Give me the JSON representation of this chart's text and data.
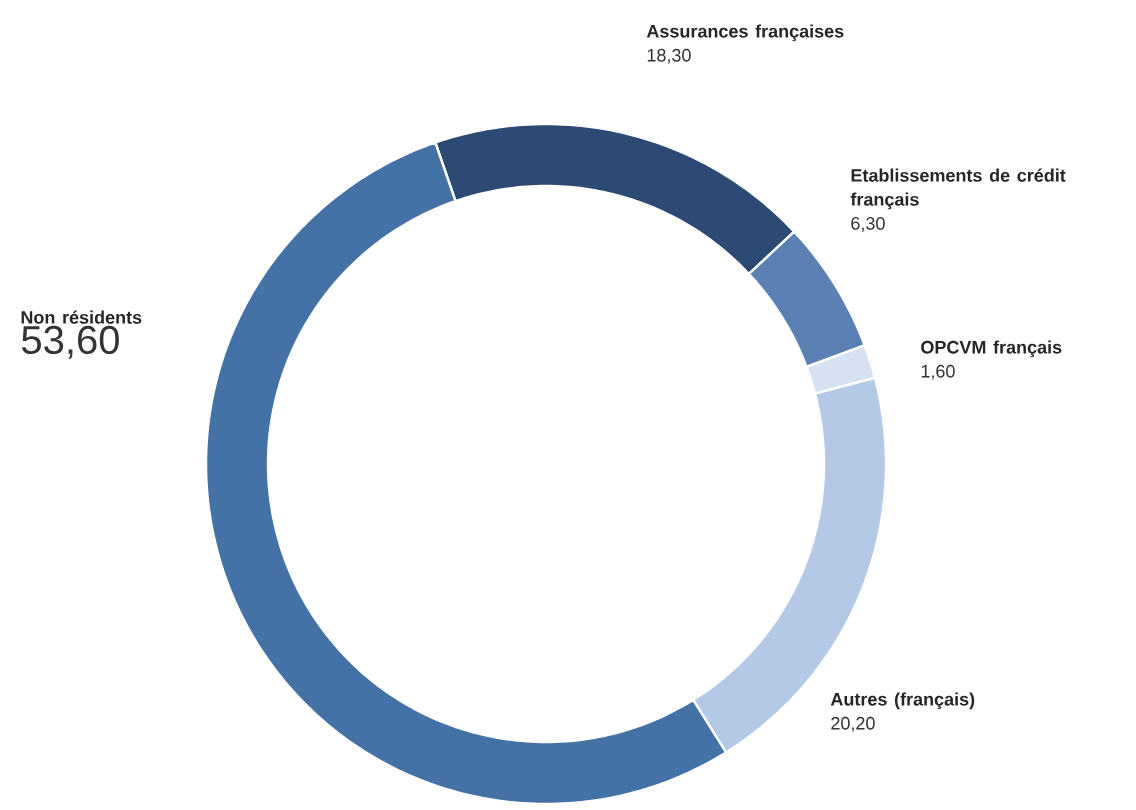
{
  "chart_data": {
    "type": "donut",
    "categories": [
      "Assurances françaises",
      "Etablissements de crédit français",
      "OPCVM français",
      "Autres (français)",
      "Non résidents"
    ],
    "values": [
      18.3,
      6.3,
      1.6,
      20.2,
      53.6
    ],
    "value_labels": [
      "18,30",
      "6,30",
      "1,60",
      "20,20",
      "53,60"
    ],
    "colors": [
      "#2c4a73",
      "#5a80b4",
      "#d6e2f2",
      "#b4c9e6",
      "#4472a6"
    ]
  }
}
